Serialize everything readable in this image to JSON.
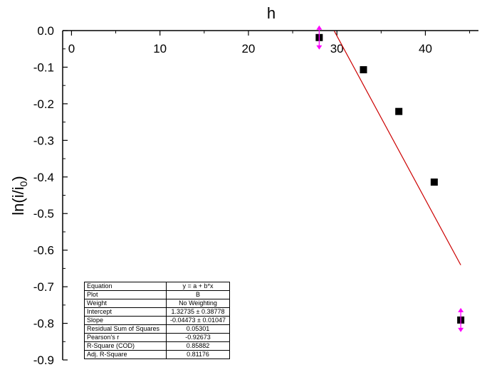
{
  "chart_data": {
    "type": "scatter",
    "xlabel": "h",
    "ylabel": "ln(i/i",
    "ylabel_subscript": "0",
    "ylabel_close": ")",
    "xlim": [
      -1,
      46
    ],
    "ylim": [
      -0.9,
      0.0
    ],
    "x_axis_position": "top",
    "y_axis_position": "left",
    "x_ticks": [
      0,
      10,
      20,
      30,
      40
    ],
    "x_tick_labels": [
      "0",
      "10",
      "20",
      "30",
      "40"
    ],
    "y_ticks": [
      0.0,
      -0.1,
      -0.2,
      -0.3,
      -0.4,
      -0.5,
      -0.6,
      -0.7,
      -0.8,
      -0.9
    ],
    "y_tick_labels": [
      "0.0",
      "-0.1",
      "-0.2",
      "-0.3",
      "-0.4",
      "-0.5",
      "-0.6",
      "-0.7",
      "-0.8",
      "-0.9"
    ],
    "grid": false,
    "points": [
      {
        "x": 28,
        "y": -0.019,
        "masked": true
      },
      {
        "x": 33,
        "y": -0.107,
        "masked": false
      },
      {
        "x": 37,
        "y": -0.221,
        "masked": false
      },
      {
        "x": 41,
        "y": -0.414,
        "masked": false
      },
      {
        "x": 44,
        "y": -0.791,
        "masked": true
      }
    ],
    "fit_line": {
      "intercept": 1.32735,
      "slope": -0.04473,
      "x_range": [
        29.7,
        44
      ],
      "color": "#cc0000"
    },
    "marker_color": "#000000",
    "mask_color": "#ff00ff",
    "fit_table": [
      {
        "key": "Equation",
        "value": "y = a + b*x"
      },
      {
        "key": "Plot",
        "value": "B"
      },
      {
        "key": "Weight",
        "value": "No Weighting"
      },
      {
        "key": "Intercept",
        "value": "1.32735 ± 0.38778"
      },
      {
        "key": "Slope",
        "value": "-0.04473 ± 0.01047"
      },
      {
        "key": "Residual Sum of Squares",
        "value": "0.05301"
      },
      {
        "key": "Pearson's r",
        "value": "-0.92673"
      },
      {
        "key": "R-Square (COD)",
        "value": "0.85882"
      },
      {
        "key": "Adj. R-Square",
        "value": "0.81176"
      }
    ]
  }
}
